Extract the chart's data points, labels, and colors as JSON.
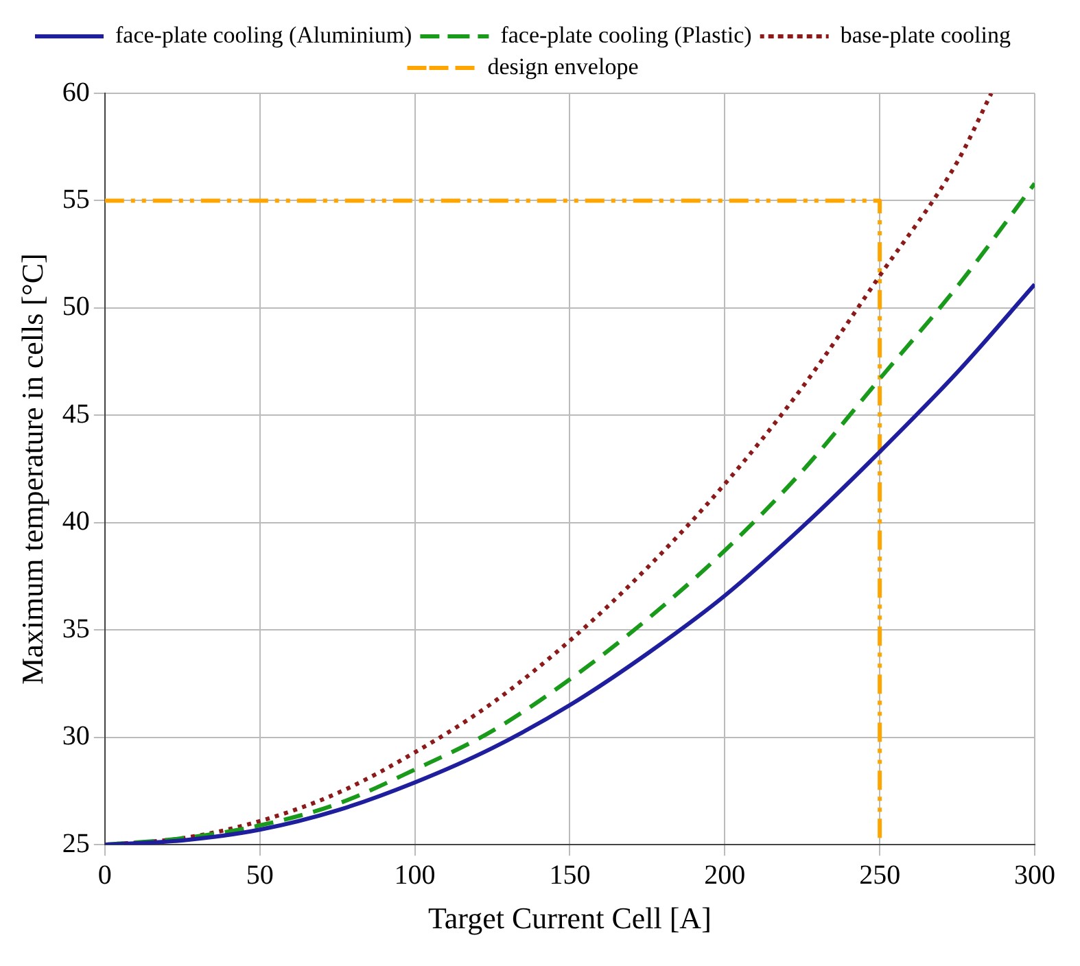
{
  "chart_data": {
    "type": "line",
    "xlabel": "Target Current Cell [A]",
    "ylabel": "Maximum temperature in cells [°C]",
    "xlim": [
      0,
      300
    ],
    "xticks": [
      0,
      50,
      100,
      150,
      200,
      250,
      300
    ],
    "ylim": [
      25,
      60
    ],
    "yticks": [
      25,
      30,
      35,
      40,
      45,
      50,
      55,
      60
    ],
    "grid": true,
    "legend": "top",
    "marker": "none",
    "series": [
      {
        "name": "face-plate cooling (Aluminium)",
        "color": "#1f1f9e",
        "line_style": "solid",
        "x": [
          0,
          25,
          50,
          75,
          100,
          125,
          150,
          175,
          200,
          225,
          250,
          275,
          300
        ],
        "values": [
          25,
          25.2,
          25.7,
          26.6,
          27.9,
          29.5,
          31.5,
          33.9,
          36.6,
          39.8,
          43.3,
          47.0,
          51.1
        ]
      },
      {
        "name": "face-plate cooling (Plastic)",
        "color": "#1a9a1a",
        "line_style": "dashed",
        "x": [
          0,
          25,
          50,
          75,
          100,
          125,
          150,
          175,
          200,
          225,
          250,
          275,
          300
        ],
        "values": [
          25,
          25.3,
          25.9,
          26.9,
          28.5,
          30.3,
          32.7,
          35.5,
          38.7,
          42.4,
          46.7,
          51.0,
          55.8
        ]
      },
      {
        "name": "base-plate cooling",
        "color": "#8b1a1a",
        "line_style": "dotted",
        "x": [
          0,
          25,
          50,
          75,
          100,
          125,
          150,
          175,
          200,
          225,
          250,
          275,
          286
        ],
        "values": [
          25,
          25.3,
          26.1,
          27.4,
          29.3,
          31.6,
          34.5,
          37.9,
          41.8,
          46.3,
          51.5,
          56.8,
          60
        ]
      },
      {
        "name": "design envelope",
        "color": "#ffa500",
        "line_style": "dashdot",
        "x": [
          0,
          250,
          250
        ],
        "values": [
          55,
          55,
          25
        ]
      }
    ]
  }
}
